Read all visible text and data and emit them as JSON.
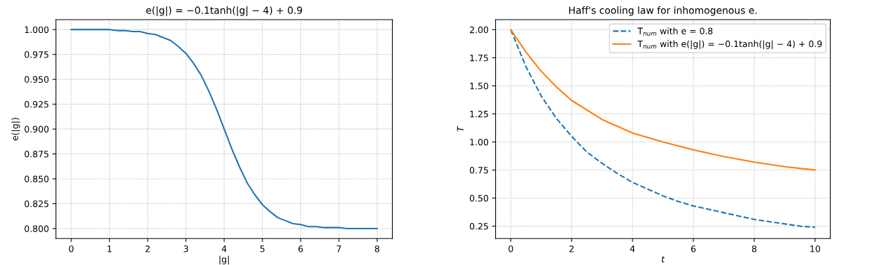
{
  "chart_data": [
    {
      "type": "line",
      "title": "e(|g|) = −0.1tanh(|g| − 4) + 0.9",
      "xlabel": "|g|",
      "ylabel": "e(|g|)",
      "x": [
        0,
        0.2,
        0.4,
        0.6,
        0.8,
        1.0,
        1.2,
        1.4,
        1.6,
        1.8,
        2.0,
        2.2,
        2.4,
        2.6,
        2.8,
        3.0,
        3.2,
        3.4,
        3.6,
        3.8,
        4.0,
        4.2,
        4.4,
        4.6,
        4.8,
        5.0,
        5.2,
        5.4,
        5.6,
        5.8,
        6.0,
        6.2,
        6.4,
        6.6,
        6.8,
        7.0,
        7.2,
        7.4,
        7.6,
        7.8,
        8.0
      ],
      "series": [
        {
          "color": "#1f77b4",
          "line_style": "solid",
          "values": [
            1.0,
            1.0,
            1.0,
            1.0,
            1.0,
            1.0,
            0.999,
            0.999,
            0.998,
            0.998,
            0.996,
            0.995,
            0.992,
            0.989,
            0.983,
            0.976,
            0.966,
            0.954,
            0.938,
            0.92,
            0.9,
            0.88,
            0.862,
            0.846,
            0.834,
            0.824,
            0.817,
            0.811,
            0.808,
            0.805,
            0.804,
            0.802,
            0.802,
            0.801,
            0.801,
            0.801,
            0.8,
            0.8,
            0.8,
            0.8,
            0.8
          ]
        }
      ],
      "xlim": [
        -0.4,
        8.4
      ],
      "xticks": [
        0,
        1,
        2,
        3,
        4,
        5,
        6,
        7,
        8
      ],
      "ylim": [
        0.79,
        1.01
      ],
      "yticks": [
        {
          "value": 0.8,
          "label": "0.800"
        },
        {
          "value": 0.825,
          "label": "0.825"
        },
        {
          "value": 0.85,
          "label": "0.850"
        },
        {
          "value": 0.875,
          "label": "0.875"
        },
        {
          "value": 0.9,
          "label": "0.900"
        },
        {
          "value": 0.925,
          "label": "0.925"
        },
        {
          "value": 0.95,
          "label": "0.950"
        },
        {
          "value": 0.975,
          "label": "0.975"
        },
        {
          "value": 1.0,
          "label": "1.000"
        }
      ],
      "grid": true,
      "legend": false
    },
    {
      "type": "line",
      "title": "Haff's cooling law for inhomogenous e.",
      "xlabel": "t",
      "ylabel": "T",
      "series": [
        {
          "name": "T$_{num}$ with e = 0.8",
          "color": "#1f77b4",
          "line_style": "dashed",
          "x": [
            0,
            0.5,
            1,
            1.5,
            2,
            2.5,
            3,
            3.5,
            4,
            4.5,
            5,
            5.5,
            6,
            6.5,
            7,
            7.5,
            8,
            8.5,
            9,
            9.5,
            10
          ],
          "values": [
            2.0,
            1.67,
            1.41,
            1.21,
            1.05,
            0.91,
            0.81,
            0.72,
            0.64,
            0.58,
            0.52,
            0.47,
            0.43,
            0.4,
            0.37,
            0.34,
            0.31,
            0.29,
            0.27,
            0.25,
            0.24
          ]
        },
        {
          "name": "T$_{num}$ with e(|g|) = −0.1tanh(|g| − 4) + 0.9",
          "color": "#ff7f0e",
          "line_style": "solid",
          "x": [
            0,
            0.5,
            1,
            1.5,
            2,
            3,
            4,
            5,
            6,
            7,
            8,
            9,
            10
          ],
          "values": [
            2.0,
            1.8,
            1.63,
            1.49,
            1.37,
            1.2,
            1.08,
            1.0,
            0.93,
            0.87,
            0.82,
            0.78,
            0.75
          ]
        }
      ],
      "xlim": [
        -0.5,
        10.5
      ],
      "xticks": [
        0,
        2,
        4,
        6,
        8,
        10
      ],
      "ylim": [
        0.14,
        2.09
      ],
      "yticks": [
        {
          "value": 0.25,
          "label": "0.25"
        },
        {
          "value": 0.5,
          "label": "0.50"
        },
        {
          "value": 0.75,
          "label": "0.75"
        },
        {
          "value": 1.0,
          "label": "1.00"
        },
        {
          "value": 1.25,
          "label": "1.25"
        },
        {
          "value": 1.5,
          "label": "1.50"
        },
        {
          "value": 1.75,
          "label": "1.75"
        },
        {
          "value": 2.0,
          "label": "2.00"
        }
      ],
      "grid": true,
      "legend": "top right"
    }
  ]
}
